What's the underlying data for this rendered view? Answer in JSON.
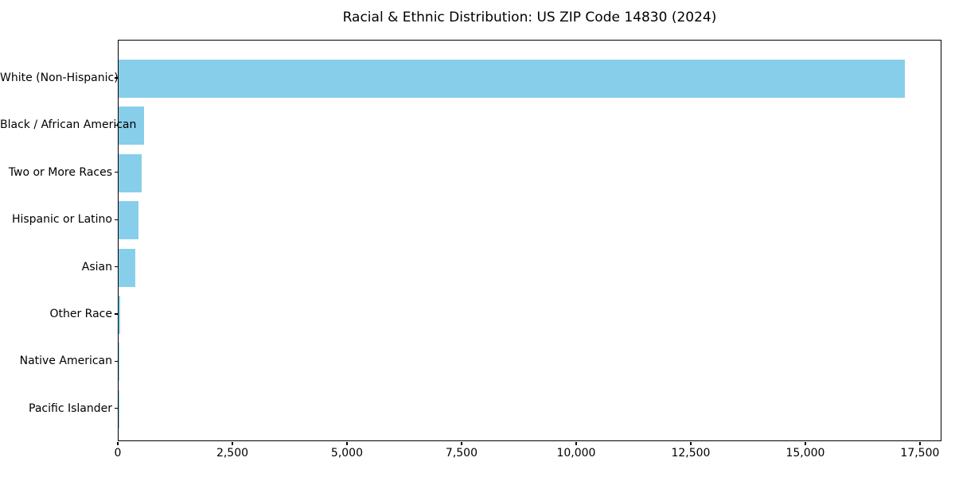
{
  "figure": {
    "background": "#ffffff"
  },
  "chart_data": {
    "type": "bar",
    "orientation": "horizontal",
    "title": "Racial & Ethnic Distribution: US ZIP Code 14830 (2024)",
    "categories": [
      "White (Non-Hispanic)",
      "Black / African American",
      "Two or More Races",
      "Hispanic or Latino",
      "Asian",
      "Other Race",
      "Native American",
      "Pacific Islander"
    ],
    "values": [
      17150,
      550,
      500,
      435,
      365,
      30,
      10,
      5
    ],
    "bar_color": "#87CEEB",
    "xlabel": "",
    "ylabel": "",
    "xlim": [
      0,
      17970
    ],
    "x_ticks": [
      0,
      2500,
      5000,
      7500,
      10000,
      12500,
      15000,
      17500
    ],
    "x_tick_labels": [
      "0",
      "2,500",
      "5,000",
      "7,500",
      "10,000",
      "12,500",
      "15,000",
      "17,500"
    ],
    "grid": false,
    "legend": "none",
    "categories_order": "top-to-bottom"
  }
}
